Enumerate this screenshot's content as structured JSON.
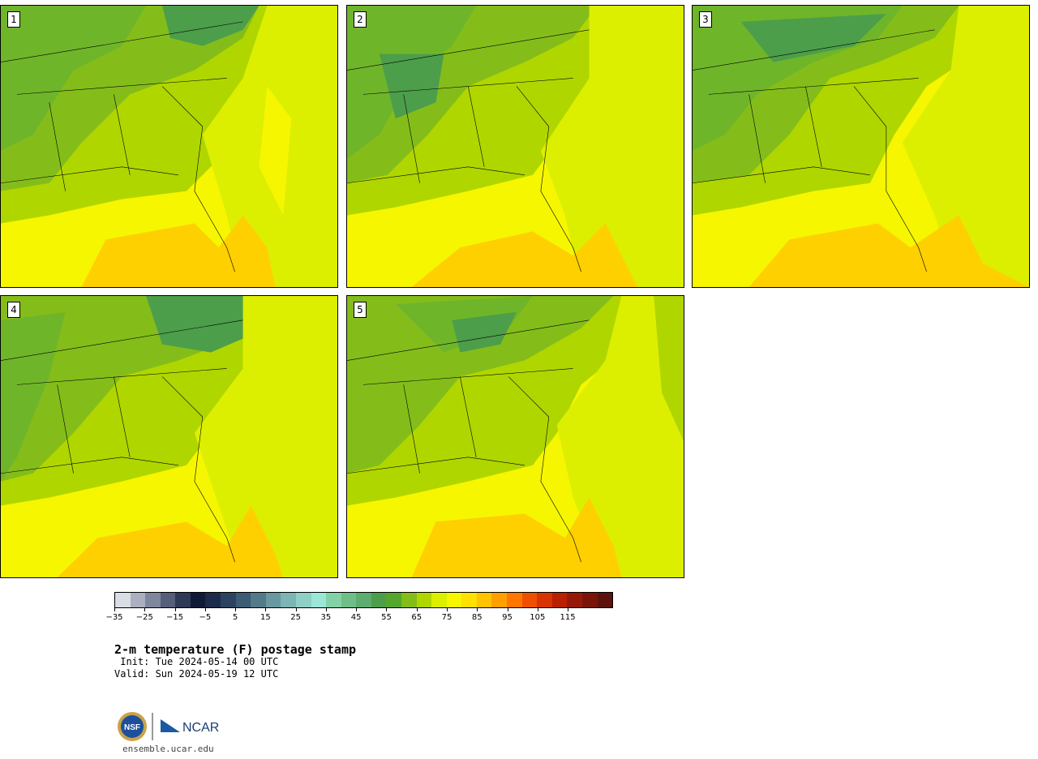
{
  "panels": [
    {
      "num": "1"
    },
    {
      "num": "2"
    },
    {
      "num": "3"
    },
    {
      "num": "4"
    },
    {
      "num": "5"
    }
  ],
  "colorbar": {
    "colors": [
      "#d9dde4",
      "#aab0c0",
      "#7f879c",
      "#555e7a",
      "#2e3957",
      "#0f1a36",
      "#1b2b4b",
      "#2b4361",
      "#3c5b74",
      "#537a88",
      "#6898a0",
      "#7db4b4",
      "#8fcfc6",
      "#9ae7d8",
      "#83d1a6",
      "#6fbe88",
      "#5cad6e",
      "#4c9e4a",
      "#55a62c",
      "#84bd1a",
      "#b0d600",
      "#dcef00",
      "#f6f600",
      "#ffe000",
      "#ffc300",
      "#ffa000",
      "#ff7700",
      "#ef5000",
      "#d83300",
      "#b82000",
      "#981808",
      "#7a1408",
      "#5c120a"
    ],
    "tick_labels": [
      "−35",
      "−25",
      "−15",
      "−5",
      "5",
      "15",
      "25",
      "35",
      "45",
      "55",
      "65",
      "75",
      "85",
      "95",
      "105",
      "115"
    ]
  },
  "colors": {
    "coastal_dark_green": "#4c9e4a",
    "green": "#6fb52a",
    "yellow_green": "#b0d600",
    "lime": "#dcef00",
    "yellow": "#f6f600",
    "gold": "#ffd000"
  },
  "title": "2-m temperature (F) postage stamp",
  "init": " Init: Tue 2024-05-14 00 UTC",
  "valid": "Valid: Sun 2024-05-19 12 UTC",
  "logos": {
    "nsf": "NSF",
    "ncar": "NCAR"
  },
  "site": "ensemble.ucar.edu"
}
